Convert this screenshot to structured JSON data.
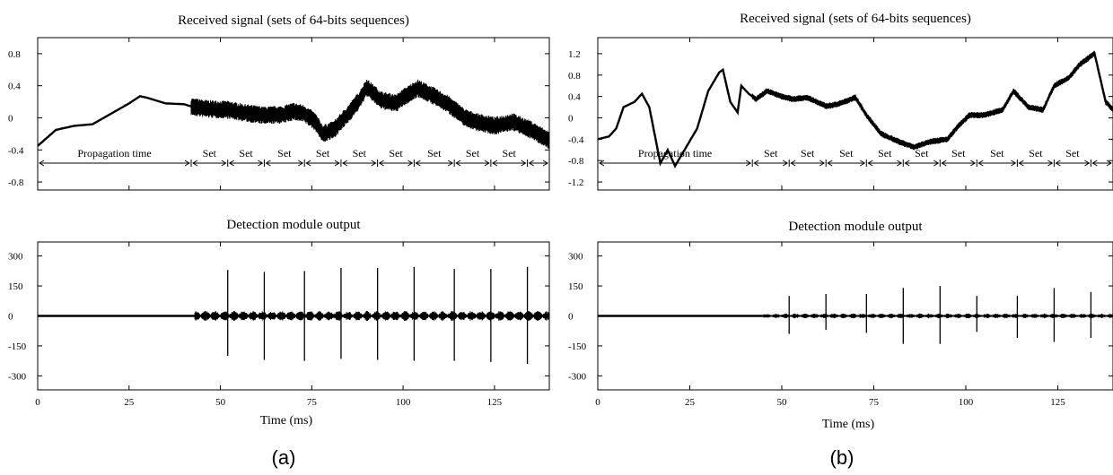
{
  "chart_data": [
    {
      "panel": "a",
      "role": "received",
      "type": "line",
      "title": "Received signal (sets of 64-bits sequences)",
      "xlim": [
        0,
        140
      ],
      "ylim": [
        -0.9,
        1.0
      ],
      "yticks": [
        -0.8,
        -0.4,
        0,
        0.4,
        0.8
      ],
      "ytick_labels": [
        "-0.8",
        "-0.4",
        "0",
        "0.4",
        "0.8"
      ],
      "x": [
        0,
        5,
        10,
        15,
        20,
        25,
        28,
        30,
        35,
        40,
        43,
        47,
        52,
        57,
        62,
        67,
        70,
        73,
        76,
        78,
        81,
        85,
        88,
        90,
        94,
        98,
        100,
        104,
        108,
        112,
        117,
        120,
        125,
        130,
        135,
        140
      ],
      "y": [
        -0.35,
        -0.15,
        -0.1,
        -0.08,
        0.05,
        0.18,
        0.27,
        0.25,
        0.18,
        0.17,
        0.13,
        0.11,
        0.1,
        0.06,
        0.03,
        0.04,
        0.08,
        0.05,
        -0.05,
        -0.2,
        -0.15,
        0.05,
        0.22,
        0.38,
        0.22,
        0.18,
        0.25,
        0.37,
        0.28,
        0.18,
        0.0,
        -0.05,
        -0.1,
        -0.05,
        -0.15,
        -0.28
      ],
      "annotations": {
        "propagation_label": "Propagation time",
        "set_label": "Set",
        "propagation_end": 42,
        "set_boundaries": [
          42,
          52,
          62,
          73,
          83,
          93,
          103,
          114,
          124,
          134,
          140
        ]
      }
    },
    {
      "panel": "a",
      "role": "detection",
      "type": "line",
      "title": "Detection module output",
      "xlabel": "Time (ms)",
      "xlim": [
        0,
        140
      ],
      "ylim": [
        -370,
        370
      ],
      "xticks": [
        0,
        25,
        50,
        75,
        100,
        125
      ],
      "yticks": [
        -300,
        -150,
        0,
        150,
        300
      ],
      "ytick_labels": [
        "-300",
        "-150",
        "0",
        "150",
        "300"
      ],
      "signal_start": 43,
      "pulse_x": [
        52,
        62,
        73,
        83,
        93,
        103,
        114,
        124,
        134
      ],
      "pulse_top": [
        230,
        220,
        225,
        240,
        240,
        245,
        235,
        235,
        245
      ],
      "pulse_bottom": [
        -200,
        -220,
        -225,
        -215,
        -220,
        -225,
        -225,
        -230,
        -240
      ],
      "noise_amp": 25
    },
    {
      "panel": "b",
      "role": "received",
      "type": "line",
      "title": "Received signal (sets of 64-bits sequences)",
      "xlim": [
        0,
        140
      ],
      "ylim": [
        -1.35,
        1.5
      ],
      "yticks": [
        -1.2,
        -0.8,
        -0.4,
        0,
        0.4,
        0.8,
        1.2
      ],
      "ytick_labels": [
        "-1.2",
        "-0.8",
        "-0.4",
        "0",
        "0.4",
        "0.8",
        "1.2"
      ],
      "x": [
        0,
        3,
        5,
        7,
        10,
        12,
        14,
        17,
        19,
        21,
        24,
        27,
        30,
        33,
        34,
        36,
        38,
        39,
        41,
        43,
        46,
        50,
        53,
        57,
        62,
        65,
        67,
        70,
        73,
        77,
        82,
        86,
        90,
        95,
        98,
        101,
        105,
        110,
        113,
        117,
        121,
        124,
        128,
        131,
        135,
        138,
        140
      ],
      "y": [
        -0.4,
        -0.35,
        -0.2,
        0.2,
        0.3,
        0.45,
        0.2,
        -0.85,
        -0.6,
        -0.9,
        -0.55,
        -0.2,
        0.5,
        0.85,
        0.9,
        0.3,
        0.1,
        0.6,
        0.45,
        0.35,
        0.5,
        0.4,
        0.35,
        0.38,
        0.22,
        0.25,
        0.3,
        0.38,
        0.05,
        -0.3,
        -0.45,
        -0.55,
        -0.45,
        -0.4,
        -0.15,
        0.05,
        0.05,
        0.15,
        0.5,
        0.2,
        0.15,
        0.6,
        0.75,
        1.0,
        1.2,
        0.3,
        0.15
      ],
      "annotations": {
        "propagation_label": "Propagation time",
        "set_label": "Set",
        "propagation_end": 42,
        "set_boundaries": [
          42,
          52,
          62,
          73,
          83,
          93,
          103,
          114,
          124,
          134,
          140
        ]
      }
    },
    {
      "panel": "b",
      "role": "detection",
      "type": "line",
      "title": "Detection module output",
      "xlabel": "Time (ms)",
      "xlim": [
        0,
        140
      ],
      "ylim": [
        -370,
        370
      ],
      "xticks": [
        0,
        25,
        50,
        75,
        100,
        125
      ],
      "yticks": [
        -300,
        -150,
        0,
        150,
        300
      ],
      "ytick_labels": [
        "-300",
        "-150",
        "0",
        "150",
        "300"
      ],
      "signal_start": 45,
      "pulse_x": [
        52,
        62,
        73,
        83,
        93,
        103,
        114,
        124,
        134
      ],
      "pulse_top": [
        100,
        110,
        110,
        140,
        150,
        100,
        100,
        140,
        120
      ],
      "pulse_bottom": [
        -90,
        -70,
        -85,
        -140,
        -140,
        -80,
        -110,
        -130,
        -110
      ],
      "noise_amp": 12
    }
  ],
  "captions": [
    "(a)",
    "(b)"
  ]
}
